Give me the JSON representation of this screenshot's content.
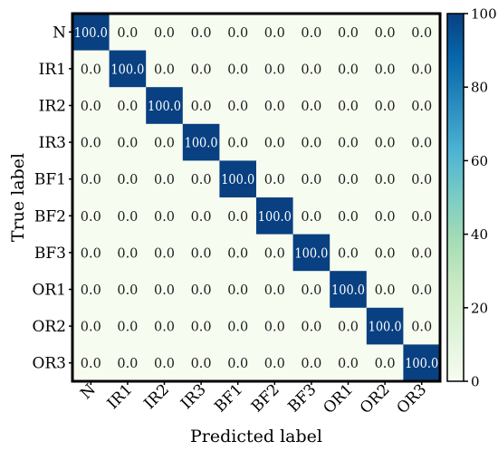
{
  "chart_data": {
    "type": "heatmap",
    "xlabel": "Predicted label",
    "ylabel": "True label",
    "rows": [
      "N",
      "IR1",
      "IR2",
      "IR3",
      "BF1",
      "BF2",
      "BF3",
      "OR1",
      "OR2",
      "OR3"
    ],
    "cols": [
      "N",
      "IR1",
      "IR2",
      "IR3",
      "BF1",
      "BF2",
      "BF3",
      "OR1",
      "OR2",
      "OR3"
    ],
    "values": [
      [
        100.0,
        0.0,
        0.0,
        0.0,
        0.0,
        0.0,
        0.0,
        0.0,
        0.0,
        0.0
      ],
      [
        0.0,
        100.0,
        0.0,
        0.0,
        0.0,
        0.0,
        0.0,
        0.0,
        0.0,
        0.0
      ],
      [
        0.0,
        0.0,
        100.0,
        0.0,
        0.0,
        0.0,
        0.0,
        0.0,
        0.0,
        0.0
      ],
      [
        0.0,
        0.0,
        0.0,
        100.0,
        0.0,
        0.0,
        0.0,
        0.0,
        0.0,
        0.0
      ],
      [
        0.0,
        0.0,
        0.0,
        0.0,
        100.0,
        0.0,
        0.0,
        0.0,
        0.0,
        0.0
      ],
      [
        0.0,
        0.0,
        0.0,
        0.0,
        0.0,
        100.0,
        0.0,
        0.0,
        0.0,
        0.0
      ],
      [
        0.0,
        0.0,
        0.0,
        0.0,
        0.0,
        0.0,
        100.0,
        0.0,
        0.0,
        0.0
      ],
      [
        0.0,
        0.0,
        0.0,
        0.0,
        0.0,
        0.0,
        0.0,
        100.0,
        0.0,
        0.0
      ],
      [
        0.0,
        0.0,
        0.0,
        0.0,
        0.0,
        0.0,
        0.0,
        0.0,
        100.0,
        0.0
      ],
      [
        0.0,
        0.0,
        0.0,
        0.0,
        0.0,
        0.0,
        0.0,
        0.0,
        0.0,
        100.0
      ]
    ],
    "value_range": [
      0,
      100
    ],
    "colorbar": {
      "ticks": [
        0,
        20,
        40,
        60,
        80,
        100
      ],
      "colormap": "GnBu",
      "colors": {
        "low": "#f7fcf0",
        "high": "#084081"
      }
    },
    "grid": false,
    "legend": "right"
  }
}
